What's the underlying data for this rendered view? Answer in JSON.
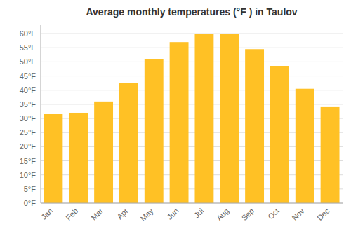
{
  "chart_data": {
    "type": "bar",
    "title": "Average monthly temperatures (°F ) in Taulov",
    "categories": [
      "Jan",
      "Feb",
      "Mar",
      "Apr",
      "May",
      "Jun",
      "Jul",
      "Aug",
      "Sep",
      "Oct",
      "Nov",
      "Dec"
    ],
    "values": [
      31.5,
      32.0,
      36.0,
      42.5,
      51.0,
      57.0,
      60.0,
      60.0,
      54.5,
      48.5,
      40.5,
      34.0
    ],
    "color": "#FFC125",
    "ylim": [
      0,
      63
    ],
    "yticks": [
      {
        "value": 0,
        "label": "0°F"
      },
      {
        "value": 5,
        "label": "5°F"
      },
      {
        "value": 10,
        "label": "10°F"
      },
      {
        "value": 15,
        "label": "15°F"
      },
      {
        "value": 20,
        "label": "20°F"
      },
      {
        "value": 25,
        "label": "25°F"
      },
      {
        "value": 30,
        "label": "30°F"
      },
      {
        "value": 35,
        "label": "35°F"
      },
      {
        "value": 40,
        "label": "40°F"
      },
      {
        "value": 45,
        "label": "45°F"
      },
      {
        "value": 50,
        "label": "50°F"
      },
      {
        "value": 55,
        "label": "55°F"
      },
      {
        "value": 60,
        "label": "60°F"
      }
    ],
    "grid": true
  }
}
